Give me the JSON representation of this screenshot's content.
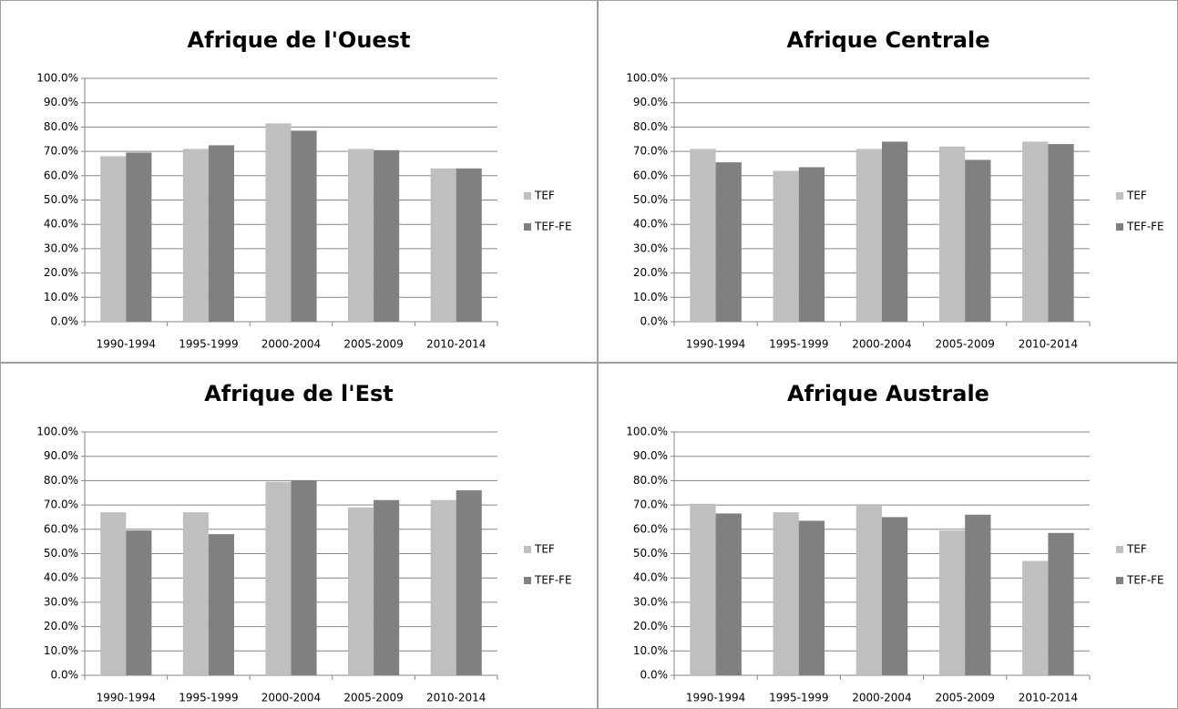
{
  "chart_data": [
    {
      "type": "bar",
      "title": "Afrique de l'Ouest",
      "categories": [
        "1990-1994",
        "1995-1999",
        "2000-2004",
        "2005-2009",
        "2010-2014"
      ],
      "series": [
        {
          "name": "TEF",
          "color": "#bfbfbf",
          "values": [
            68,
            71,
            81.5,
            71,
            63
          ]
        },
        {
          "name": "TEF-FE",
          "color": "#808080",
          "values": [
            69.5,
            72.5,
            78.5,
            70.5,
            63
          ]
        }
      ],
      "ylim": [
        0,
        100
      ],
      "yticks": [
        {
          "value": 0,
          "label": "0.0%"
        },
        {
          "value": 10,
          "label": "10.0%"
        },
        {
          "value": 20,
          "label": "20.0%"
        },
        {
          "value": 30,
          "label": "30.0%"
        },
        {
          "value": 40,
          "label": "40.0%"
        },
        {
          "value": 50,
          "label": "50.0%"
        },
        {
          "value": 60,
          "label": "60.0%"
        },
        {
          "value": 70,
          "label": "70.0%"
        },
        {
          "value": 80,
          "label": "80.0%"
        },
        {
          "value": 90,
          "label": "90.0%"
        },
        {
          "value": 100,
          "label": "100.0%"
        }
      ],
      "grid": true,
      "legend": "right"
    },
    {
      "type": "bar",
      "title": "Afrique Centrale",
      "categories": [
        "1990-1994",
        "1995-1999",
        "2000-2004",
        "2005-2009",
        "2010-2014"
      ],
      "series": [
        {
          "name": "TEF",
          "color": "#bfbfbf",
          "values": [
            71,
            62,
            71,
            72,
            74
          ]
        },
        {
          "name": "TEF-FE",
          "color": "#808080",
          "values": [
            65.5,
            63.5,
            74,
            66.5,
            73
          ]
        }
      ],
      "ylim": [
        0,
        100
      ],
      "yticks": [
        {
          "value": 0,
          "label": "0.0%"
        },
        {
          "value": 10,
          "label": "10.0%"
        },
        {
          "value": 20,
          "label": "20.0%"
        },
        {
          "value": 30,
          "label": "30.0%"
        },
        {
          "value": 40,
          "label": "40.0%"
        },
        {
          "value": 50,
          "label": "50.0%"
        },
        {
          "value": 60,
          "label": "60.0%"
        },
        {
          "value": 70,
          "label": "70.0%"
        },
        {
          "value": 80,
          "label": "80.0%"
        },
        {
          "value": 90,
          "label": "90.0%"
        },
        {
          "value": 100,
          "label": "100.0%"
        }
      ],
      "grid": true,
      "legend": "right"
    },
    {
      "type": "bar",
      "title": "Afrique de l'Est",
      "categories": [
        "1990-1994",
        "1995-1999",
        "2000-2004",
        "2005-2009",
        "2010-2014"
      ],
      "series": [
        {
          "name": "TEF",
          "color": "#bfbfbf",
          "values": [
            67,
            67,
            79.5,
            69,
            72
          ]
        },
        {
          "name": "TEF-FE",
          "color": "#808080",
          "values": [
            59.5,
            58,
            80,
            72,
            76
          ]
        }
      ],
      "ylim": [
        0,
        100
      ],
      "yticks": [
        {
          "value": 0,
          "label": "0.0%"
        },
        {
          "value": 10,
          "label": "10.0%"
        },
        {
          "value": 20,
          "label": "20.0%"
        },
        {
          "value": 30,
          "label": "30.0%"
        },
        {
          "value": 40,
          "label": "40.0%"
        },
        {
          "value": 50,
          "label": "50.0%"
        },
        {
          "value": 60,
          "label": "60.0%"
        },
        {
          "value": 70,
          "label": "70.0%"
        },
        {
          "value": 80,
          "label": "80.0%"
        },
        {
          "value": 90,
          "label": "90.0%"
        },
        {
          "value": 100,
          "label": "100.0%"
        }
      ],
      "grid": true,
      "legend": "right"
    },
    {
      "type": "bar",
      "title": "Afrique Australe",
      "categories": [
        "1990-1994",
        "1995-1999",
        "2000-2004",
        "2005-2009",
        "2010-2014"
      ],
      "series": [
        {
          "name": "TEF",
          "color": "#bfbfbf",
          "values": [
            70.5,
            67,
            70,
            59.5,
            47
          ]
        },
        {
          "name": "TEF-FE",
          "color": "#808080",
          "values": [
            66.5,
            63.5,
            65,
            66,
            58.5
          ]
        }
      ],
      "ylim": [
        0,
        100
      ],
      "yticks": [
        {
          "value": 0,
          "label": "0.0%"
        },
        {
          "value": 10,
          "label": "10.0%"
        },
        {
          "value": 20,
          "label": "20.0%"
        },
        {
          "value": 30,
          "label": "30.0%"
        },
        {
          "value": 40,
          "label": "40.0%"
        },
        {
          "value": 50,
          "label": "50.0%"
        },
        {
          "value": 60,
          "label": "60.0%"
        },
        {
          "value": 70,
          "label": "70.0%"
        },
        {
          "value": 80,
          "label": "80.0%"
        },
        {
          "value": 90,
          "label": "90.0%"
        },
        {
          "value": 100,
          "label": "100.0%"
        }
      ],
      "grid": true,
      "legend": "right"
    }
  ]
}
